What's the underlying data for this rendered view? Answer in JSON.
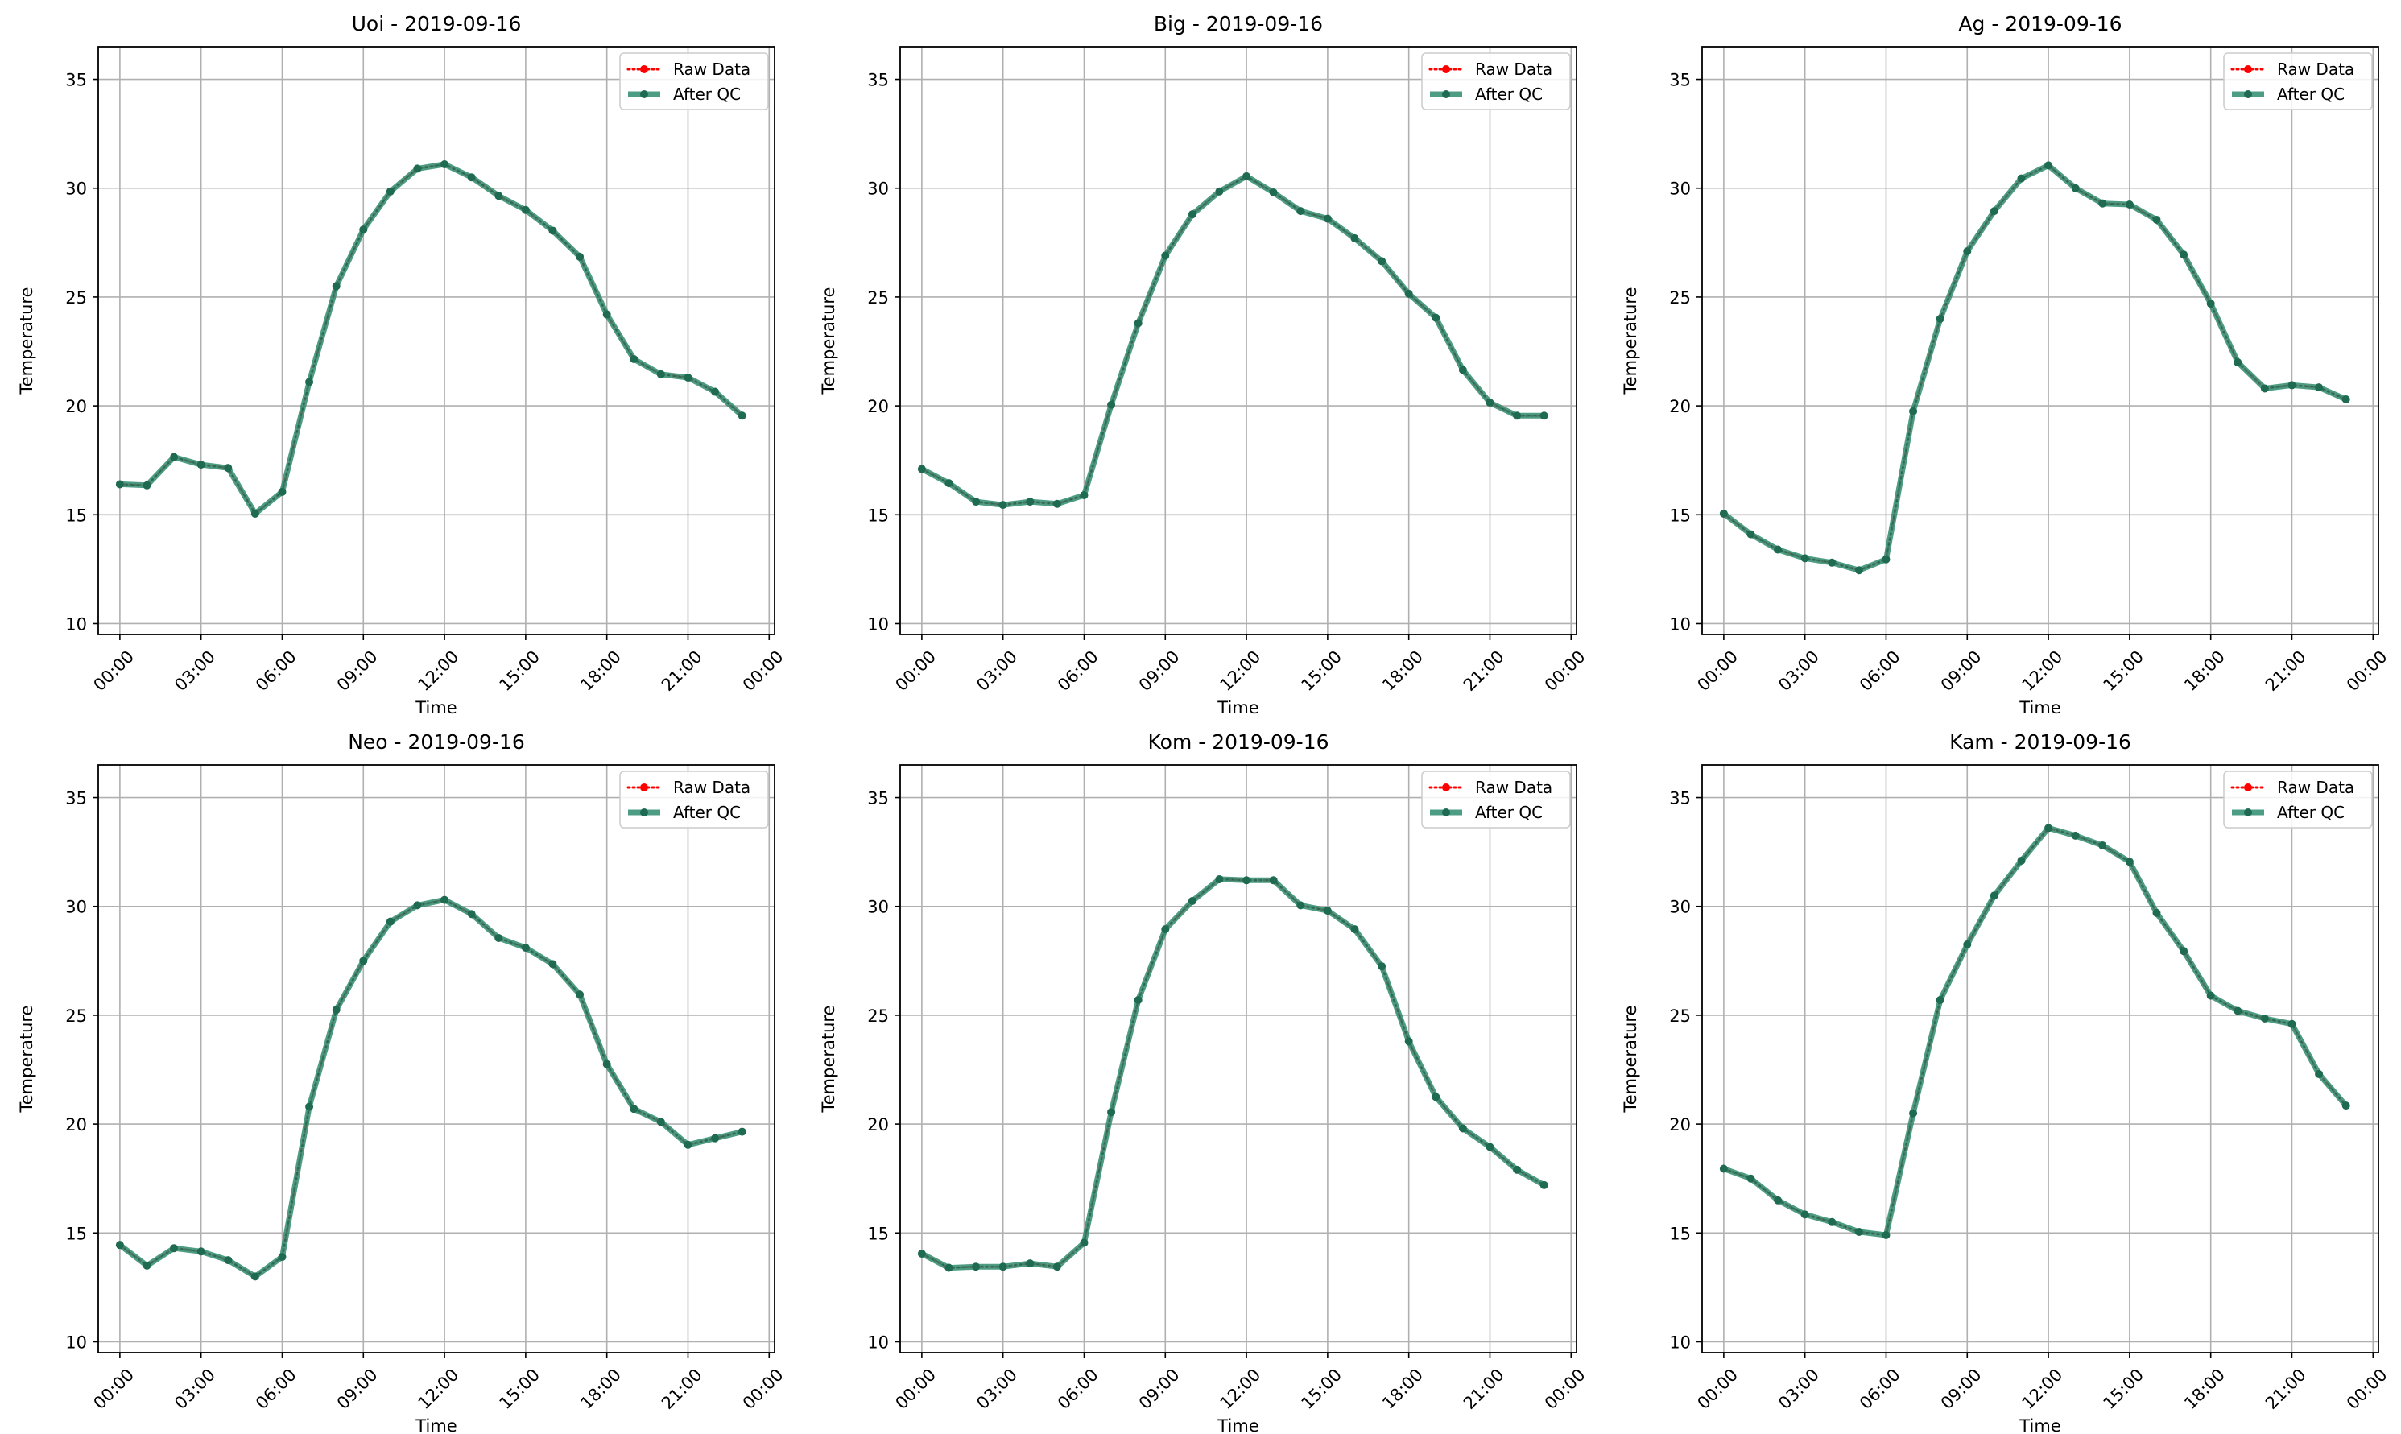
{
  "figure": {
    "background": "#ffffff",
    "colors": {
      "raw": "#ff0000",
      "qc_line": "#2e8b6e",
      "qc_marker": "#1f6b52",
      "grid": "#b0b0b0"
    }
  },
  "chart_data": [
    {
      "type": "line",
      "title": "Uoi - 2019-09-16",
      "xlabel": "Time",
      "ylabel": "Temperature",
      "ylim": [
        9.5,
        36.5
      ],
      "xlim": [
        -0.8,
        24.2
      ],
      "x_unit": "hour",
      "yticks": [
        10,
        15,
        20,
        25,
        30,
        35
      ],
      "xticks": [
        0,
        3,
        6,
        9,
        12,
        15,
        18,
        21,
        24
      ],
      "xtick_labels": [
        "00:00",
        "03:00",
        "06:00",
        "09:00",
        "12:00",
        "15:00",
        "18:00",
        "21:00",
        "00:00"
      ],
      "grid": true,
      "legend": "top-right",
      "x": [
        0,
        1,
        2,
        3,
        4,
        5,
        6,
        7,
        8,
        9,
        10,
        11,
        12,
        13,
        14,
        15,
        16,
        17,
        18,
        19,
        20,
        21,
        22,
        23
      ],
      "series": [
        {
          "name": "Raw Data",
          "style": "dotted-red-markers",
          "values": [
            16.4,
            16.35,
            17.65,
            17.3,
            17.15,
            15.05,
            16.05,
            21.1,
            25.5,
            28.1,
            29.85,
            30.9,
            31.1,
            30.5,
            29.65,
            29.0,
            28.05,
            26.85,
            24.2,
            22.15,
            21.45,
            21.3,
            20.65,
            19.55
          ]
        },
        {
          "name": "After QC",
          "style": "solid-green-markers",
          "values": [
            16.4,
            16.35,
            17.65,
            17.3,
            17.15,
            15.05,
            16.05,
            21.1,
            25.5,
            28.1,
            29.85,
            30.9,
            31.1,
            30.5,
            29.65,
            29.0,
            28.05,
            26.85,
            24.2,
            22.15,
            21.45,
            21.3,
            20.65,
            19.55
          ]
        }
      ]
    },
    {
      "type": "line",
      "title": "Big - 2019-09-16",
      "xlabel": "Time",
      "ylabel": "Temperature",
      "ylim": [
        9.5,
        36.5
      ],
      "xlim": [
        -0.8,
        24.2
      ],
      "x_unit": "hour",
      "yticks": [
        10,
        15,
        20,
        25,
        30,
        35
      ],
      "xticks": [
        0,
        3,
        6,
        9,
        12,
        15,
        18,
        21,
        24
      ],
      "xtick_labels": [
        "00:00",
        "03:00",
        "06:00",
        "09:00",
        "12:00",
        "15:00",
        "18:00",
        "21:00",
        "00:00"
      ],
      "grid": true,
      "legend": "top-right",
      "x": [
        0,
        1,
        2,
        3,
        4,
        5,
        6,
        7,
        8,
        9,
        10,
        11,
        12,
        13,
        14,
        15,
        16,
        17,
        18,
        19,
        20,
        21,
        22,
        23
      ],
      "series": [
        {
          "name": "Raw Data",
          "style": "dotted-red-markers",
          "values": [
            17.1,
            16.45,
            15.6,
            15.45,
            15.6,
            15.5,
            15.9,
            20.05,
            23.8,
            26.9,
            28.8,
            29.85,
            30.55,
            29.8,
            28.95,
            28.6,
            27.7,
            26.65,
            25.15,
            24.05,
            21.65,
            20.15,
            19.55,
            19.55
          ]
        },
        {
          "name": "After QC",
          "style": "solid-green-markers",
          "values": [
            17.1,
            16.45,
            15.6,
            15.45,
            15.6,
            15.5,
            15.9,
            20.05,
            23.8,
            26.9,
            28.8,
            29.85,
            30.55,
            29.8,
            28.95,
            28.6,
            27.7,
            26.65,
            25.15,
            24.05,
            21.65,
            20.15,
            19.55,
            19.55
          ]
        }
      ]
    },
    {
      "type": "line",
      "title": "Ag - 2019-09-16",
      "xlabel": "Time",
      "ylabel": "Temperature",
      "ylim": [
        9.5,
        36.5
      ],
      "xlim": [
        -0.8,
        24.2
      ],
      "x_unit": "hour",
      "yticks": [
        10,
        15,
        20,
        25,
        30,
        35
      ],
      "xticks": [
        0,
        3,
        6,
        9,
        12,
        15,
        18,
        21,
        24
      ],
      "xtick_labels": [
        "00:00",
        "03:00",
        "06:00",
        "09:00",
        "12:00",
        "15:00",
        "18:00",
        "21:00",
        "00:00"
      ],
      "grid": true,
      "legend": "top-right",
      "x": [
        0,
        1,
        2,
        3,
        4,
        5,
        6,
        7,
        8,
        9,
        10,
        11,
        12,
        13,
        14,
        15,
        16,
        17,
        18,
        19,
        20,
        21,
        22,
        23
      ],
      "series": [
        {
          "name": "Raw Data",
          "style": "dotted-red-markers",
          "values": [
            15.05,
            14.1,
            13.4,
            13.0,
            12.8,
            12.45,
            12.95,
            19.75,
            24.0,
            27.1,
            28.95,
            30.45,
            31.05,
            30.0,
            29.3,
            29.25,
            28.55,
            26.95,
            24.7,
            22.0,
            20.8,
            20.95,
            20.85,
            20.3
          ]
        },
        {
          "name": "After QC",
          "style": "solid-green-markers",
          "values": [
            15.05,
            14.1,
            13.4,
            13.0,
            12.8,
            12.45,
            12.95,
            19.75,
            24.0,
            27.1,
            28.95,
            30.45,
            31.05,
            30.0,
            29.3,
            29.25,
            28.55,
            26.95,
            24.7,
            22.0,
            20.8,
            20.95,
            20.85,
            20.3
          ]
        }
      ]
    },
    {
      "type": "line",
      "title": "Neo - 2019-09-16",
      "xlabel": "Time",
      "ylabel": "Temperature",
      "ylim": [
        9.5,
        36.5
      ],
      "xlim": [
        -0.8,
        24.2
      ],
      "x_unit": "hour",
      "yticks": [
        10,
        15,
        20,
        25,
        30,
        35
      ],
      "xticks": [
        0,
        3,
        6,
        9,
        12,
        15,
        18,
        21,
        24
      ],
      "xtick_labels": [
        "00:00",
        "03:00",
        "06:00",
        "09:00",
        "12:00",
        "15:00",
        "18:00",
        "21:00",
        "00:00"
      ],
      "grid": true,
      "legend": "top-right",
      "x": [
        0,
        1,
        2,
        3,
        4,
        5,
        6,
        7,
        8,
        9,
        10,
        11,
        12,
        13,
        14,
        15,
        16,
        17,
        18,
        19,
        20,
        21,
        22,
        23
      ],
      "series": [
        {
          "name": "Raw Data",
          "style": "dotted-red-markers",
          "values": [
            14.45,
            13.5,
            14.3,
            14.15,
            13.75,
            13.0,
            13.9,
            20.8,
            25.25,
            27.5,
            29.3,
            30.05,
            30.3,
            29.65,
            28.55,
            28.1,
            27.35,
            25.95,
            22.75,
            20.7,
            20.1,
            19.05,
            19.35,
            19.65
          ]
        },
        {
          "name": "After QC",
          "style": "solid-green-markers",
          "values": [
            14.45,
            13.5,
            14.3,
            14.15,
            13.75,
            13.0,
            13.9,
            20.8,
            25.25,
            27.5,
            29.3,
            30.05,
            30.3,
            29.65,
            28.55,
            28.1,
            27.35,
            25.95,
            22.75,
            20.7,
            20.1,
            19.05,
            19.35,
            19.65
          ]
        }
      ]
    },
    {
      "type": "line",
      "title": "Kom - 2019-09-16",
      "xlabel": "Time",
      "ylabel": "Temperature",
      "ylim": [
        9.5,
        36.5
      ],
      "xlim": [
        -0.8,
        24.2
      ],
      "x_unit": "hour",
      "yticks": [
        10,
        15,
        20,
        25,
        30,
        35
      ],
      "xticks": [
        0,
        3,
        6,
        9,
        12,
        15,
        18,
        21,
        24
      ],
      "xtick_labels": [
        "00:00",
        "03:00",
        "06:00",
        "09:00",
        "12:00",
        "15:00",
        "18:00",
        "21:00",
        "00:00"
      ],
      "grid": true,
      "legend": "top-right",
      "x": [
        0,
        1,
        2,
        3,
        4,
        5,
        6,
        7,
        8,
        9,
        10,
        11,
        12,
        13,
        14,
        15,
        16,
        17,
        18,
        19,
        20,
        21,
        22,
        23
      ],
      "series": [
        {
          "name": "Raw Data",
          "style": "dotted-red-markers",
          "values": [
            14.05,
            13.4,
            13.45,
            13.45,
            13.6,
            13.45,
            14.55,
            20.55,
            25.7,
            28.95,
            30.25,
            31.25,
            31.2,
            31.2,
            30.05,
            29.8,
            28.95,
            27.25,
            23.8,
            21.25,
            19.8,
            18.95,
            17.9,
            17.2
          ]
        },
        {
          "name": "After QC",
          "style": "solid-green-markers",
          "values": [
            14.05,
            13.4,
            13.45,
            13.45,
            13.6,
            13.45,
            14.55,
            20.55,
            25.7,
            28.95,
            30.25,
            31.25,
            31.2,
            31.2,
            30.05,
            29.8,
            28.95,
            27.25,
            23.8,
            21.25,
            19.8,
            18.95,
            17.9,
            17.2
          ]
        }
      ]
    },
    {
      "type": "line",
      "title": "Kam - 2019-09-16",
      "xlabel": "Time",
      "ylabel": "Temperature",
      "ylim": [
        9.5,
        36.5
      ],
      "xlim": [
        -0.8,
        24.2
      ],
      "x_unit": "hour",
      "yticks": [
        10,
        15,
        20,
        25,
        30,
        35
      ],
      "xticks": [
        0,
        3,
        6,
        9,
        12,
        15,
        18,
        21,
        24
      ],
      "xtick_labels": [
        "00:00",
        "03:00",
        "06:00",
        "09:00",
        "12:00",
        "15:00",
        "18:00",
        "21:00",
        "00:00"
      ],
      "grid": true,
      "legend": "top-right",
      "x": [
        0,
        1,
        2,
        3,
        4,
        5,
        6,
        7,
        8,
        9,
        10,
        11,
        12,
        13,
        14,
        15,
        16,
        17,
        18,
        19,
        20,
        21,
        22,
        23
      ],
      "series": [
        {
          "name": "Raw Data",
          "style": "dotted-red-markers",
          "values": [
            17.95,
            17.5,
            16.5,
            15.85,
            15.5,
            15.05,
            14.9,
            20.5,
            25.7,
            28.25,
            30.5,
            32.1,
            33.6,
            33.25,
            32.8,
            32.05,
            29.7,
            27.95,
            25.9,
            25.2,
            24.85,
            24.6,
            22.3,
            20.85
          ]
        },
        {
          "name": "After QC",
          "style": "solid-green-markers",
          "values": [
            17.95,
            17.5,
            16.5,
            15.85,
            15.5,
            15.05,
            14.9,
            20.5,
            25.7,
            28.25,
            30.5,
            32.1,
            33.6,
            33.25,
            32.8,
            32.05,
            29.7,
            27.95,
            25.9,
            25.2,
            24.85,
            24.6,
            22.3,
            20.85
          ]
        }
      ]
    }
  ]
}
